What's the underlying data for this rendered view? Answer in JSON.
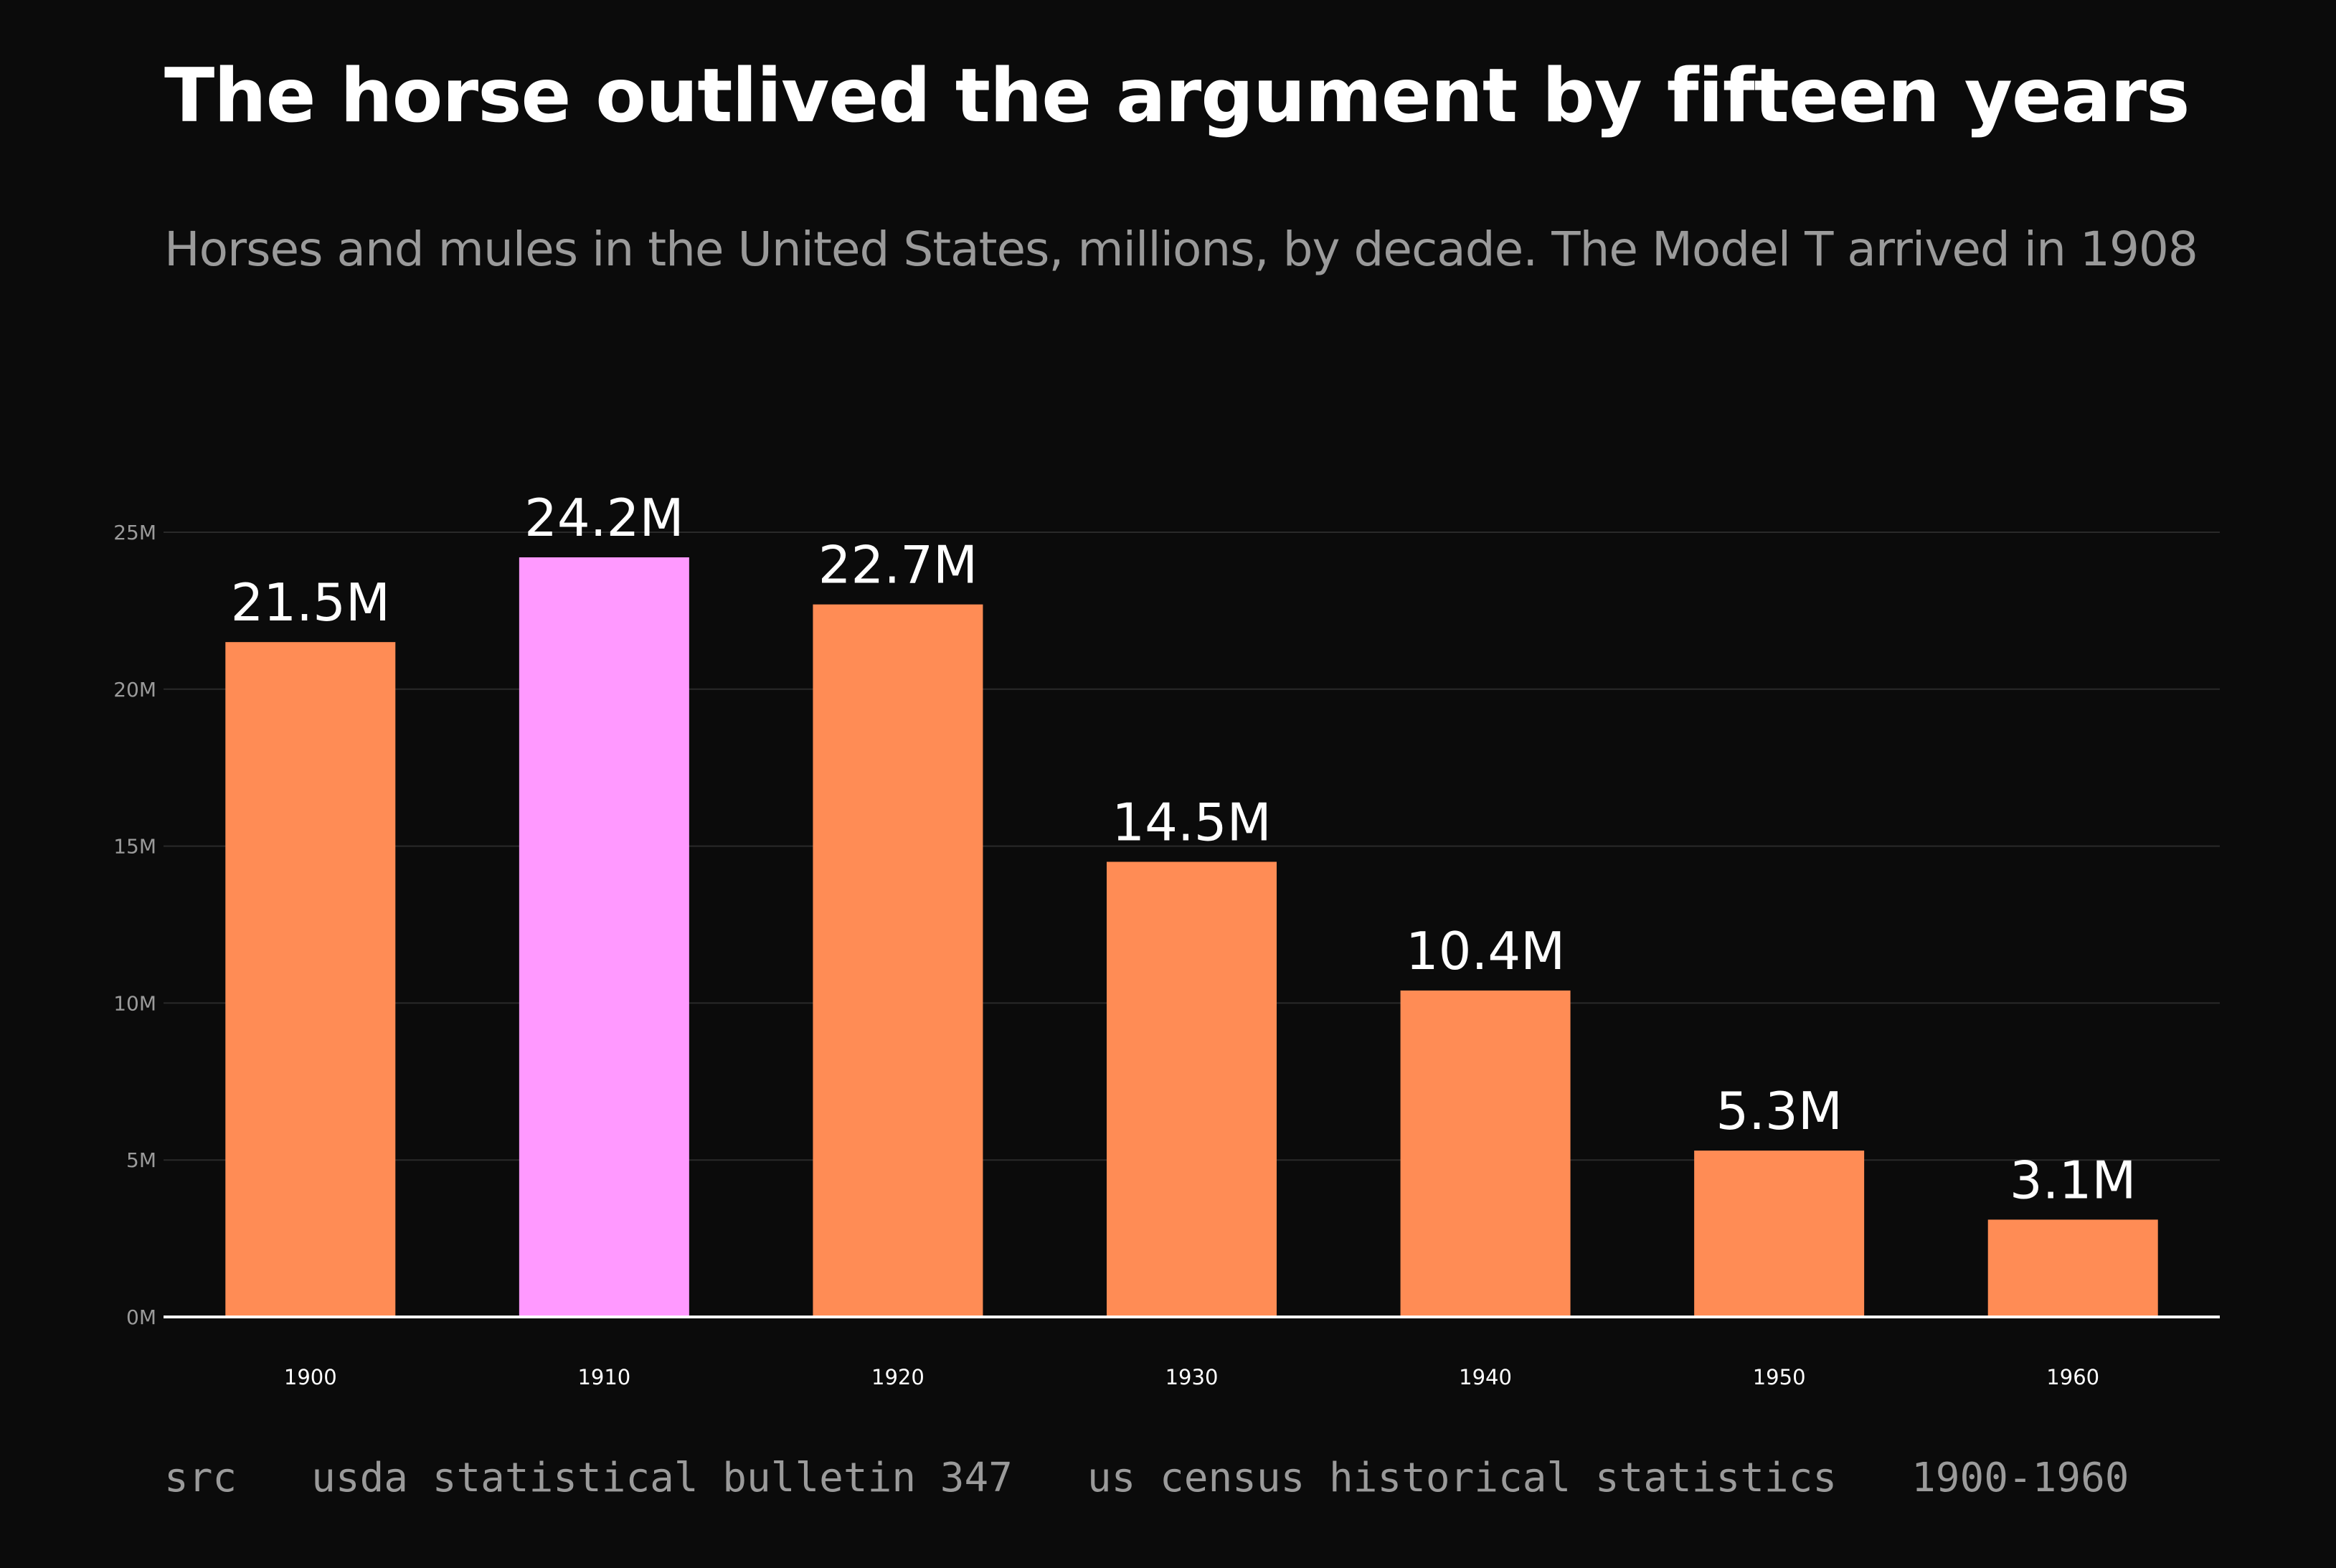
{
  "chart_data": {
    "type": "bar",
    "title": "The horse outlived the argument by fifteen years",
    "subtitle": "Horses and mules in the United States, millions, by decade. The Model T arrived in 1908",
    "categories": [
      "1900",
      "1910",
      "1920",
      "1930",
      "1940",
      "1950",
      "1960"
    ],
    "values": [
      21.5,
      24.2,
      22.7,
      14.5,
      10.4,
      5.3,
      3.1
    ],
    "value_labels": [
      "21.5M",
      "24.2M",
      "22.7M",
      "14.5M",
      "10.4M",
      "5.3M",
      "3.1M"
    ],
    "highlight_index": 1,
    "y_ticks": [
      0,
      5,
      10,
      15,
      20,
      25
    ],
    "y_tick_labels": [
      "0M",
      "5M",
      "10M",
      "15M",
      "20M",
      "25M"
    ],
    "ylim": [
      0,
      25
    ],
    "xlabel": "",
    "ylabel": "",
    "grid": true,
    "legend": "none",
    "colors": {
      "bar": "#ff8c55",
      "highlight": "#ff99ff",
      "background": "#0b0b0b",
      "grid": "#2a2a2a",
      "axis": "#ffffff"
    }
  },
  "source": {
    "key": "src",
    "parts": [
      "usda statistical bulletin 347",
      "us census historical statistics",
      "1900-1960"
    ]
  }
}
